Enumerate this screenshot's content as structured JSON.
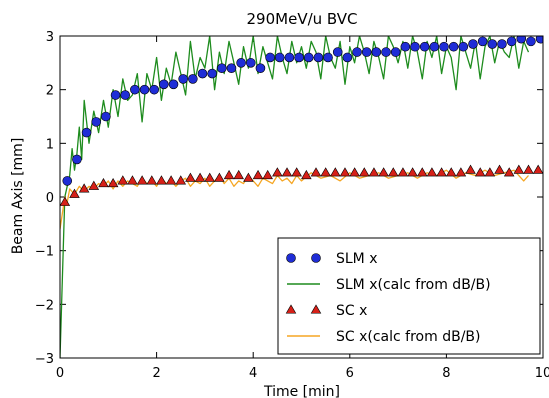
{
  "chart_data": {
    "type": "line",
    "title": "290MeV/u BVC",
    "xlabel": "Time [min]",
    "ylabel": "Beam Axis [mm]",
    "xlim": [
      0,
      10
    ],
    "ylim": [
      -3,
      3
    ],
    "xticks": [
      0,
      2,
      4,
      6,
      8,
      10
    ],
    "yticks": [
      -3,
      -2,
      -1,
      0,
      1,
      2,
      3
    ],
    "xtick_labels": [
      "0",
      "2",
      "4",
      "6",
      "8",
      "10"
    ],
    "ytick_labels": [
      "−3",
      "−2",
      "−1",
      "0",
      "1",
      "2",
      "3"
    ],
    "grid": false,
    "legend_position": "lower-right",
    "series": [
      {
        "name": "SLM x",
        "marker": "circle",
        "color": "#1f2dd6",
        "x": [
          0.15,
          0.35,
          0.55,
          0.75,
          0.95,
          1.15,
          1.35,
          1.55,
          1.75,
          1.95,
          2.15,
          2.35,
          2.55,
          2.75,
          2.95,
          3.15,
          3.35,
          3.55,
          3.75,
          3.95,
          4.15,
          4.35,
          4.55,
          4.75,
          4.95,
          5.15,
          5.35,
          5.55,
          5.75,
          5.95,
          6.15,
          6.35,
          6.55,
          6.75,
          6.95,
          7.15,
          7.35,
          7.55,
          7.75,
          7.95,
          8.15,
          8.35,
          8.55,
          8.75,
          8.95,
          9.15,
          9.35,
          9.55,
          9.75,
          9.95
        ],
        "y": [
          0.3,
          0.7,
          1.2,
          1.4,
          1.5,
          1.9,
          1.9,
          2.0,
          2.0,
          2.0,
          2.1,
          2.1,
          2.2,
          2.2,
          2.3,
          2.3,
          2.4,
          2.4,
          2.5,
          2.5,
          2.4,
          2.6,
          2.6,
          2.6,
          2.6,
          2.6,
          2.6,
          2.6,
          2.7,
          2.6,
          2.7,
          2.7,
          2.7,
          2.7,
          2.7,
          2.8,
          2.8,
          2.8,
          2.8,
          2.8,
          2.8,
          2.8,
          2.85,
          2.9,
          2.85,
          2.85,
          2.9,
          2.95,
          2.9,
          2.95
        ]
      },
      {
        "name": "SLM x(calc from dB/B)",
        "marker": "line",
        "color": "#1e8c1e",
        "x": [
          0.0,
          0.05,
          0.1,
          0.15,
          0.2,
          0.25,
          0.3,
          0.35,
          0.4,
          0.45,
          0.5,
          0.6,
          0.7,
          0.8,
          0.9,
          1.0,
          1.1,
          1.2,
          1.3,
          1.4,
          1.5,
          1.6,
          1.7,
          1.8,
          1.9,
          2.0,
          2.1,
          2.2,
          2.3,
          2.4,
          2.5,
          2.6,
          2.7,
          2.8,
          2.9,
          3.0,
          3.1,
          3.2,
          3.3,
          3.4,
          3.5,
          3.6,
          3.7,
          3.8,
          3.9,
          4.0,
          4.1,
          4.2,
          4.3,
          4.4,
          4.5,
          4.6,
          4.7,
          4.8,
          4.9,
          5.0,
          5.1,
          5.2,
          5.3,
          5.4,
          5.5,
          5.6,
          5.7,
          5.8,
          5.9,
          6.0,
          6.1,
          6.2,
          6.3,
          6.4,
          6.5,
          6.6,
          6.7,
          6.8,
          6.9,
          7.0,
          7.1,
          7.2,
          7.3,
          7.4,
          7.5,
          7.6,
          7.7,
          7.8,
          7.9,
          8.0,
          8.1,
          8.2,
          8.3,
          8.4,
          8.5,
          8.6,
          8.7,
          8.8,
          8.9,
          9.0,
          9.1,
          9.2,
          9.3,
          9.4,
          9.5,
          9.6,
          9.7
        ],
        "y": [
          -3.0,
          -1.5,
          0.0,
          0.2,
          0.4,
          0.9,
          0.5,
          0.8,
          1.3,
          0.7,
          1.8,
          1.0,
          1.6,
          1.2,
          1.8,
          1.3,
          2.0,
          1.5,
          2.2,
          1.8,
          1.9,
          2.3,
          1.4,
          2.3,
          2.0,
          2.6,
          1.8,
          2.4,
          2.1,
          2.7,
          2.3,
          1.9,
          2.9,
          2.2,
          2.6,
          2.4,
          3.0,
          2.0,
          2.7,
          2.3,
          2.9,
          2.5,
          2.1,
          2.8,
          2.4,
          3.0,
          2.3,
          2.8,
          2.5,
          2.2,
          3.0,
          2.6,
          2.3,
          2.9,
          2.5,
          2.8,
          2.4,
          2.9,
          2.7,
          2.2,
          3.0,
          2.6,
          2.4,
          2.9,
          2.1,
          2.8,
          2.5,
          3.0,
          2.7,
          2.3,
          2.9,
          2.6,
          2.2,
          3.0,
          2.8,
          2.5,
          2.9,
          2.4,
          3.0,
          2.7,
          2.2,
          2.9,
          2.6,
          3.0,
          2.3,
          2.8,
          2.6,
          2.0,
          3.0,
          2.7,
          2.4,
          2.9,
          2.2,
          2.8,
          3.0,
          2.5,
          2.9,
          2.7,
          2.6,
          3.0,
          2.4,
          2.9,
          2.7
        ]
      },
      {
        "name": "SC x",
        "marker": "triangle",
        "color": "#d62018",
        "x": [
          0.1,
          0.3,
          0.5,
          0.7,
          0.9,
          1.1,
          1.3,
          1.5,
          1.7,
          1.9,
          2.1,
          2.3,
          2.5,
          2.7,
          2.9,
          3.1,
          3.3,
          3.5,
          3.7,
          3.9,
          4.1,
          4.3,
          4.5,
          4.7,
          4.9,
          5.1,
          5.3,
          5.5,
          5.7,
          5.9,
          6.1,
          6.3,
          6.5,
          6.7,
          6.9,
          7.1,
          7.3,
          7.5,
          7.7,
          7.9,
          8.1,
          8.3,
          8.5,
          8.7,
          8.9,
          9.1,
          9.3,
          9.5,
          9.7,
          9.9
        ],
        "y": [
          -0.1,
          0.05,
          0.15,
          0.2,
          0.25,
          0.25,
          0.3,
          0.3,
          0.3,
          0.3,
          0.3,
          0.3,
          0.3,
          0.35,
          0.35,
          0.35,
          0.35,
          0.4,
          0.4,
          0.35,
          0.4,
          0.4,
          0.45,
          0.45,
          0.45,
          0.4,
          0.45,
          0.45,
          0.45,
          0.45,
          0.45,
          0.45,
          0.45,
          0.45,
          0.45,
          0.45,
          0.45,
          0.45,
          0.45,
          0.45,
          0.45,
          0.45,
          0.5,
          0.45,
          0.45,
          0.5,
          0.45,
          0.5,
          0.5,
          0.5
        ]
      },
      {
        "name": "SC x(calc from dB/B)",
        "marker": "line",
        "color": "#f5a623",
        "x": [
          0.0,
          0.05,
          0.1,
          0.15,
          0.2,
          0.3,
          0.4,
          0.5,
          0.6,
          0.7,
          0.8,
          0.9,
          1.0,
          1.1,
          1.2,
          1.3,
          1.4,
          1.5,
          1.6,
          1.7,
          1.8,
          1.9,
          2.0,
          2.1,
          2.2,
          2.3,
          2.4,
          2.5,
          2.6,
          2.7,
          2.8,
          2.9,
          3.0,
          3.1,
          3.2,
          3.3,
          3.4,
          3.5,
          3.6,
          3.7,
          3.8,
          3.9,
          4.0,
          4.1,
          4.2,
          4.3,
          4.4,
          4.5,
          4.6,
          4.7,
          4.8,
          4.9,
          5.0,
          5.2,
          5.4,
          5.6,
          5.8,
          6.0,
          6.2,
          6.4,
          6.6,
          6.8,
          7.0,
          7.2,
          7.4,
          7.6,
          7.8,
          8.0,
          8.2,
          8.4,
          8.6,
          8.8,
          9.0,
          9.2,
          9.4,
          9.6,
          9.7
        ],
        "y": [
          -0.6,
          -0.3,
          0.0,
          -0.1,
          0.15,
          0.05,
          0.2,
          0.1,
          0.2,
          0.15,
          0.25,
          0.2,
          0.3,
          0.15,
          0.3,
          0.2,
          0.3,
          0.25,
          0.2,
          0.35,
          0.25,
          0.3,
          0.2,
          0.35,
          0.25,
          0.3,
          0.2,
          0.3,
          0.35,
          0.2,
          0.3,
          0.25,
          0.35,
          0.2,
          0.3,
          0.4,
          0.25,
          0.35,
          0.2,
          0.3,
          0.25,
          0.4,
          0.3,
          0.2,
          0.35,
          0.3,
          0.25,
          0.4,
          0.3,
          0.35,
          0.25,
          0.4,
          0.3,
          0.45,
          0.35,
          0.4,
          0.3,
          0.45,
          0.35,
          0.4,
          0.45,
          0.35,
          0.4,
          0.45,
          0.35,
          0.45,
          0.4,
          0.5,
          0.35,
          0.45,
          0.4,
          0.5,
          0.4,
          0.45,
          0.5,
          0.3,
          0.4
        ]
      }
    ]
  }
}
